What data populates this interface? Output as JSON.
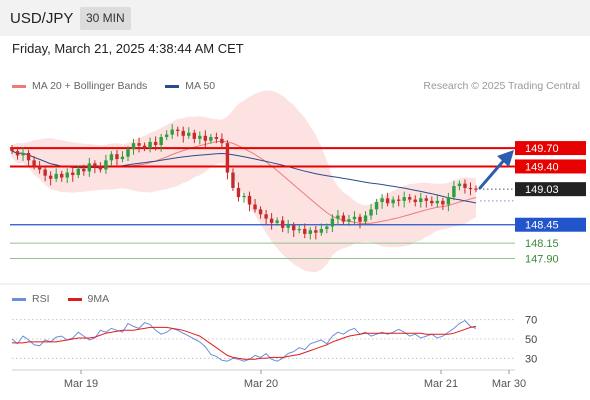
{
  "header": {
    "symbol": "USD/JPY",
    "timeframe": "30 MIN"
  },
  "datetime": "Friday, March 21, 2025 4:38:44 AM CET",
  "credit": "Research © 2025 Trading Central",
  "legend_main": [
    {
      "label": "MA 20 + Bollinger Bands",
      "color": "#f07a7a"
    },
    {
      "label": "MA 50",
      "color": "#2b4c8a"
    }
  ],
  "legend_rsi": [
    {
      "label": "RSI",
      "color": "#6b8fd6"
    },
    {
      "label": "9MA",
      "color": "#e01b1b"
    }
  ],
  "colors": {
    "up": "#2e9e3e",
    "down": "#c62a2a",
    "resistance": "#e60000",
    "support": "#2255cc",
    "target": "#3a8a3a",
    "arrow": "#2a5db0",
    "last": "#222222"
  },
  "chart_data": [
    {
      "type": "candlestick",
      "x_ticks": [
        "Mar 19",
        "Mar 20",
        "Mar 21",
        "Mar 30"
      ],
      "ylim": [
        147.5,
        150.5
      ],
      "last_price": {
        "value": 149.03,
        "label": "149.03"
      },
      "levels": [
        {
          "value": 149.7,
          "label": "149.70",
          "kind": "resistance"
        },
        {
          "value": 149.4,
          "label": "149.40",
          "kind": "resistance"
        },
        {
          "value": 148.45,
          "label": "148.45",
          "kind": "support"
        },
        {
          "value": 148.15,
          "label": "148.15",
          "kind": "target"
        },
        {
          "value": 147.9,
          "label": "147.90",
          "kind": "target"
        }
      ],
      "close": [
        149.65,
        149.58,
        149.62,
        149.5,
        149.4,
        149.35,
        149.25,
        149.2,
        149.28,
        149.22,
        149.3,
        149.26,
        149.36,
        149.32,
        149.45,
        149.4,
        149.35,
        149.5,
        149.6,
        149.52,
        149.56,
        149.68,
        149.78,
        149.74,
        149.7,
        149.8,
        149.75,
        149.88,
        149.92,
        150.0,
        149.98,
        149.9,
        149.95,
        149.85,
        149.9,
        149.82,
        149.88,
        149.85,
        149.78,
        149.3,
        149.05,
        148.9,
        148.92,
        148.78,
        148.7,
        148.62,
        148.55,
        148.48,
        148.52,
        148.4,
        148.44,
        148.36,
        148.38,
        148.3,
        148.36,
        148.32,
        148.38,
        148.42,
        148.55,
        148.6,
        148.5,
        148.54,
        148.58,
        148.5,
        148.6,
        148.7,
        148.82,
        148.88,
        148.8,
        148.86,
        148.84,
        148.9,
        148.86,
        148.82,
        148.88,
        148.84,
        148.8,
        148.84,
        148.78,
        148.9,
        149.08,
        149.12,
        149.05,
        149.04,
        149.03
      ],
      "rsi": {
        "ylim": [
          20,
          80
        ],
        "levels": [
          70,
          50,
          30
        ],
        "rsi": [
          50,
          45,
          53,
          49,
          44,
          43,
          49,
          47,
          52,
          53,
          49,
          51,
          57,
          53,
          49,
          51,
          59,
          57,
          61,
          59,
          57,
          66,
          63,
          61,
          67,
          65,
          59,
          55,
          57,
          61,
          59,
          56,
          53,
          50,
          47,
          42,
          34,
          32,
          28,
          27,
          30,
          29,
          27,
          29,
          33,
          31,
          35,
          29,
          27,
          30,
          35,
          37,
          41,
          39,
          45,
          47,
          49,
          45,
          53,
          57,
          55,
          59,
          61,
          55,
          57,
          53,
          55,
          57,
          55,
          57,
          60,
          57,
          53,
          55,
          51,
          53,
          55,
          51,
          53,
          57,
          61,
          66,
          69,
          63,
          61
        ],
        "ma9": [
          46,
          46,
          46,
          47,
          47,
          47,
          47,
          47,
          47,
          48,
          49,
          50,
          51,
          51,
          51,
          52,
          54,
          56,
          57,
          58,
          59,
          59,
          59,
          60,
          61,
          62,
          62,
          62,
          62,
          61,
          60,
          59,
          57,
          55,
          53,
          49,
          45,
          41,
          37,
          33,
          31,
          30,
          29,
          29,
          29,
          30,
          30,
          31,
          31,
          31,
          32,
          33,
          34,
          36,
          38,
          40,
          42,
          44,
          47,
          49,
          51,
          53,
          54,
          55,
          56,
          56,
          56,
          56,
          56,
          56,
          56,
          56,
          56,
          56,
          56,
          55,
          55,
          55,
          55,
          55,
          56,
          58,
          60,
          62,
          63
        ]
      }
    }
  ]
}
